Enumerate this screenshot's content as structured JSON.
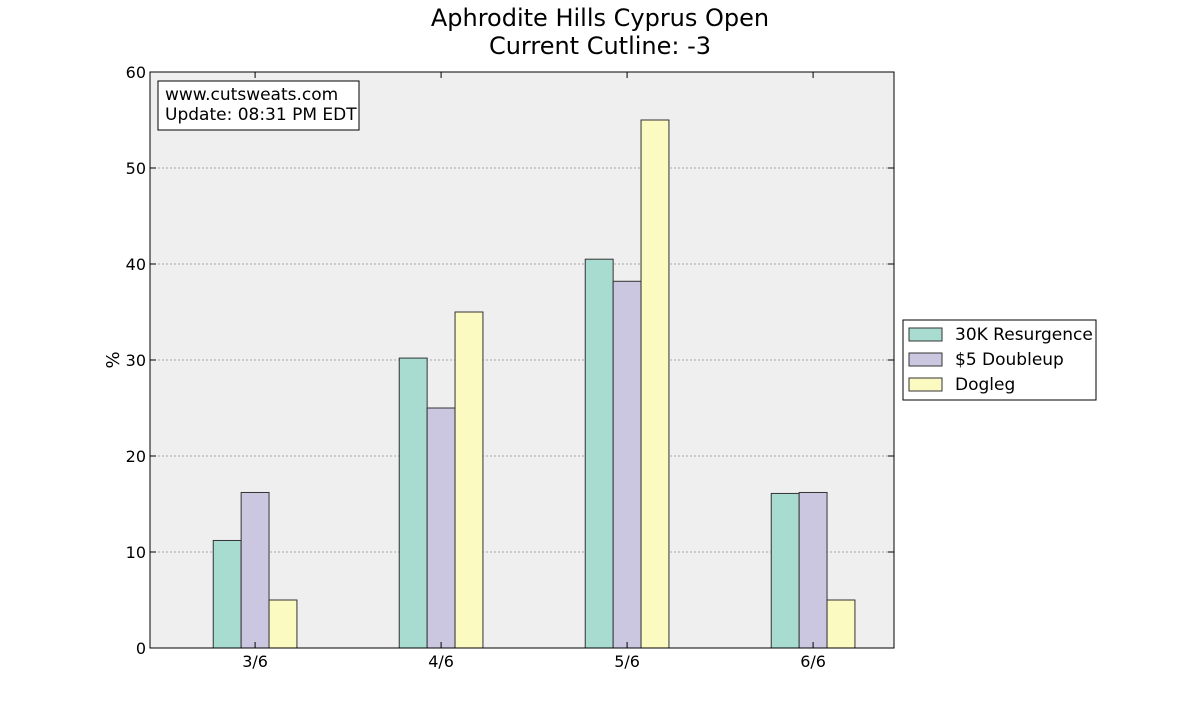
{
  "chart_data": {
    "type": "bar",
    "title": "Aphrodite Hills Cyprus Open",
    "subtitle": "Current Cutline: -3",
    "xlabel": "",
    "ylabel": "%",
    "categories": [
      "3/6",
      "4/6",
      "5/6",
      "6/6"
    ],
    "series": [
      {
        "name": "30K Resurgence",
        "color": "#a8dcd1",
        "values": [
          11.2,
          30.2,
          40.5,
          16.1
        ]
      },
      {
        "name": "$5 Doubleup",
        "color": "#cbc7e0",
        "values": [
          16.2,
          25.0,
          38.2,
          16.2
        ]
      },
      {
        "name": "Dogleg",
        "color": "#fbfac0",
        "values": [
          5.0,
          35.0,
          55.0,
          5.0
        ]
      }
    ],
    "ylim": [
      0,
      60
    ],
    "yticks": [
      "0",
      "10",
      "20",
      "30",
      "40",
      "50",
      "60"
    ],
    "grid": true,
    "legend_position": "right, outside",
    "annotation": {
      "line1": "www.cutsweats.com",
      "line2": "Update: 08:31 PM EDT"
    },
    "plot_background": "#efefef",
    "grid_color": "#aaaaaa"
  }
}
